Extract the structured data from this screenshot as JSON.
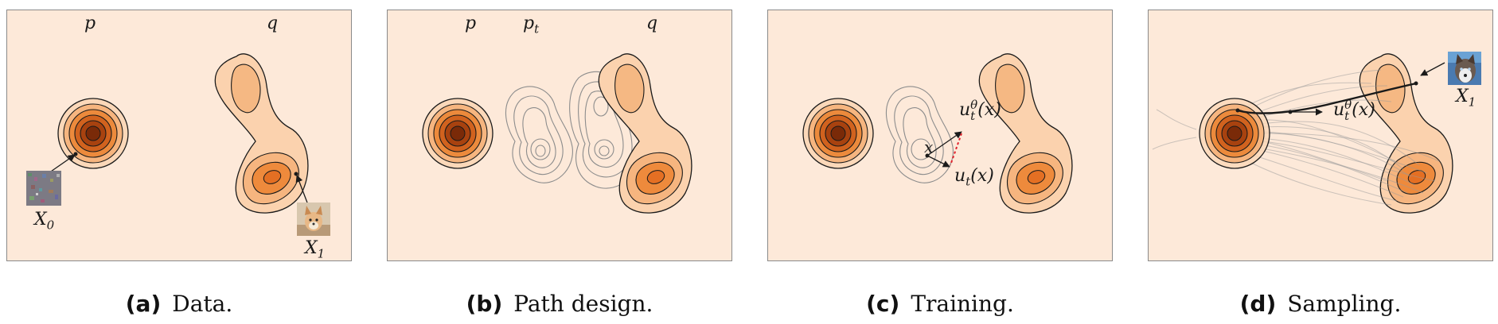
{
  "panels": [
    {
      "labels": {
        "p": "p",
        "q": "q",
        "x0": "X",
        "x0_sub": "0",
        "x1": "X",
        "x1_sub": "1"
      },
      "caption": {
        "letter": "(a)",
        "text": "Data."
      }
    },
    {
      "labels": {
        "p": "p",
        "pt": "p",
        "pt_sub": "t",
        "q": "q"
      },
      "caption": {
        "letter": "(b)",
        "text": "Path design."
      }
    },
    {
      "labels": {
        "x": "x",
        "u_theta": "u",
        "u_theta_sup": "θ",
        "u_theta_sub": "t",
        "u_theta_arg": "(x)",
        "u": "u",
        "u_sub": "t",
        "u_arg": "(x)"
      },
      "caption": {
        "letter": "(c)",
        "text": "Training."
      }
    },
    {
      "labels": {
        "u_theta": "u",
        "u_theta_sup": "θ",
        "u_theta_sub": "t",
        "u_theta_arg": "(x)",
        "x1": "X",
        "x1_sub": "1"
      },
      "caption": {
        "letter": "(d)",
        "text": "Sampling."
      }
    }
  ],
  "colors": {
    "background": "#fde9d9",
    "contour_stroke": "#1a1a1a",
    "dark_center": "#8a2e0a",
    "mid_orange": "#e8762a",
    "light_orange": "#f7c79c",
    "error_line": "#e0202a"
  }
}
